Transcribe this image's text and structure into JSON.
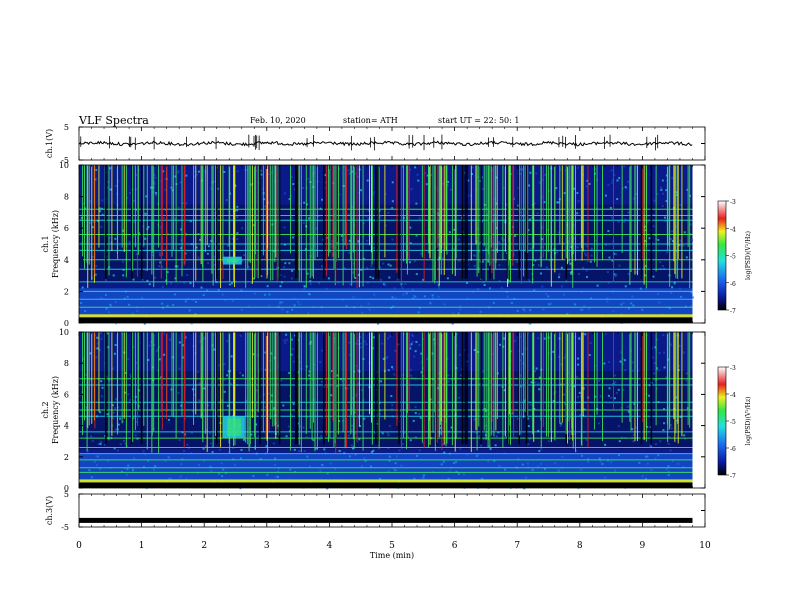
{
  "header": {
    "title": "VLF  Spectra",
    "date": "Feb. 10, 2020",
    "station": "station= ATH",
    "start_ut": "start  UT  =    22: 50: 1"
  },
  "colors": {
    "spectro_bg": "#0a1a8a",
    "spectro_dark": "#03104a",
    "band_cyan": "#22d3e6",
    "spike_green": "#3ee85a",
    "spike_yellow": "#f2f21a",
    "spike_red": "#e22020"
  },
  "chart_data": [
    {
      "type": "line",
      "name": "ch1-voltage",
      "ylabel": "ch.1(V)",
      "ylim": [
        -5,
        5
      ],
      "yticks": [
        "5",
        "-5"
      ],
      "xlim": [
        0,
        10
      ],
      "baseline_value": 0
    },
    {
      "type": "heatmap",
      "name": "ch1-spectrogram",
      "ylabel": "ch.1\nFrequency (kHz)",
      "ylabel_lines": [
        "ch.1",
        "Frequency  (kHz)"
      ],
      "ylim": [
        0,
        10
      ],
      "yticks": [
        "0",
        "2",
        "4",
        "6",
        "8",
        "10"
      ],
      "xlim": [
        0,
        10
      ],
      "data_end_min": 9.8,
      "colorbar": {
        "label": "log(PSD)(V²/Hz)",
        "ticks": [
          "-3",
          "-4",
          "-5",
          "-6",
          "-7"
        ],
        "range": [
          -7,
          -3
        ]
      },
      "horizontal_lines_khz": [
        0.5,
        1.0,
        1.5,
        2.0,
        2.6,
        3.4,
        4.0,
        4.6,
        5.0,
        5.6,
        6.5,
        6.8,
        7.2
      ],
      "burst": {
        "t_min": [
          2.3,
          2.6
        ],
        "f_khz": [
          3.7,
          4.2
        ]
      }
    },
    {
      "type": "heatmap",
      "name": "ch2-spectrogram",
      "ylabel": "ch.2\nFrequency (kHz)",
      "ylabel_lines": [
        "ch.2",
        "Frequency  (kHz)"
      ],
      "ylim": [
        0,
        10
      ],
      "yticks": [
        "0",
        "2",
        "4",
        "6",
        "8",
        "10"
      ],
      "xlim": [
        0,
        10
      ],
      "data_end_min": 9.8,
      "colorbar": {
        "label": "log(PSD)(V²/Hz)",
        "ticks": [
          "-3",
          "-4",
          "-5",
          "-6",
          "-7"
        ],
        "range": [
          -7,
          -3
        ]
      },
      "horizontal_lines_khz": [
        0.5,
        1.0,
        1.3,
        1.8,
        2.2,
        2.6,
        3.2,
        3.6,
        4.6,
        5.0,
        5.5,
        6.6,
        7.0
      ],
      "burst": {
        "t_min": [
          2.3,
          2.65
        ],
        "f_khz": [
          3.2,
          4.6
        ]
      }
    },
    {
      "type": "line",
      "name": "ch3-voltage",
      "ylabel": "ch.3(V)",
      "ylim": [
        -5,
        5
      ],
      "yticks": [
        "5",
        "-5"
      ],
      "xlim": [
        0,
        10
      ],
      "baseline_value": -3
    }
  ],
  "x_axis": {
    "label": "Time  (min)",
    "ticks": [
      "0",
      "1",
      "2",
      "3",
      "4",
      "5",
      "6",
      "7",
      "8",
      "9",
      "10"
    ],
    "range": [
      0,
      10
    ]
  }
}
